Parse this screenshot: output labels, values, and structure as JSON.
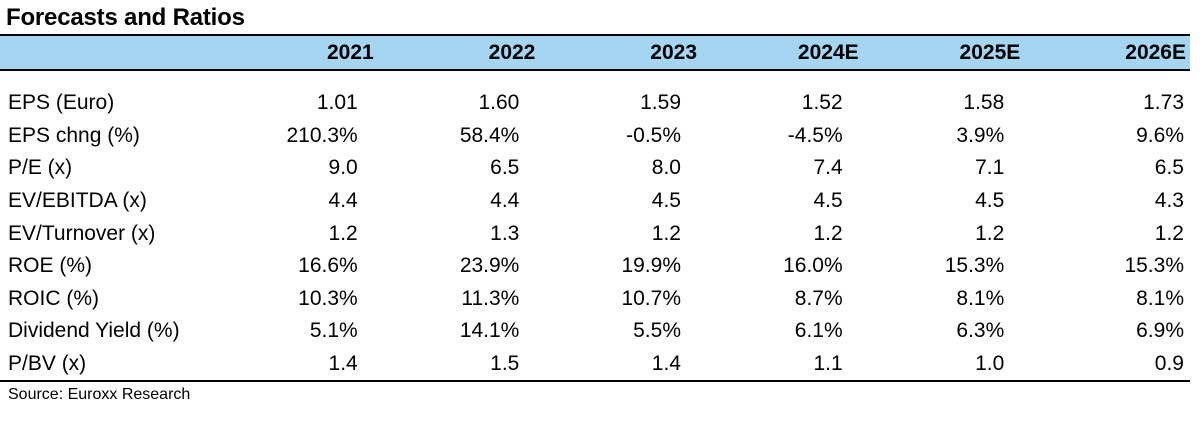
{
  "title": "Forecasts and Ratios",
  "table": {
    "columns": [
      "",
      "2021",
      "2022",
      "2023",
      "2024E",
      "2025E",
      "2026E"
    ],
    "rows": [
      {
        "label": "EPS (Euro)",
        "values": [
          "1.01",
          "1.60",
          "1.59",
          "1.52",
          "1.58",
          "1.73"
        ]
      },
      {
        "label": "EPS chng (%)",
        "values": [
          "210.3%",
          "58.4%",
          "-0.5%",
          "-4.5%",
          "3.9%",
          "9.6%"
        ]
      },
      {
        "label": "P/E (x)",
        "values": [
          "9.0",
          "6.5",
          "8.0",
          "7.4",
          "7.1",
          "6.5"
        ]
      },
      {
        "label": "EV/EBITDA (x)",
        "values": [
          "4.4",
          "4.4",
          "4.5",
          "4.5",
          "4.5",
          "4.3"
        ]
      },
      {
        "label": "EV/Turnover (x)",
        "values": [
          "1.2",
          "1.3",
          "1.2",
          "1.2",
          "1.2",
          "1.2"
        ]
      },
      {
        "label": "ROE (%)",
        "values": [
          "16.6%",
          "23.9%",
          "19.9%",
          "16.0%",
          "15.3%",
          "15.3%"
        ]
      },
      {
        "label": "ROIC (%)",
        "values": [
          "10.3%",
          "11.3%",
          "10.7%",
          "8.7%",
          "8.1%",
          "8.1%"
        ]
      },
      {
        "label": "Dividend Yield (%)",
        "values": [
          "5.1%",
          "14.1%",
          "5.5%",
          "6.1%",
          "6.3%",
          "6.9%"
        ]
      },
      {
        "label": "P/BV (x)",
        "values": [
          "1.4",
          "1.5",
          "1.4",
          "1.1",
          "1.0",
          "0.9"
        ]
      }
    ]
  },
  "source": "Source: Euroxx Research",
  "colors": {
    "header_bg": "#a6d5f1",
    "rule": "#000000"
  }
}
